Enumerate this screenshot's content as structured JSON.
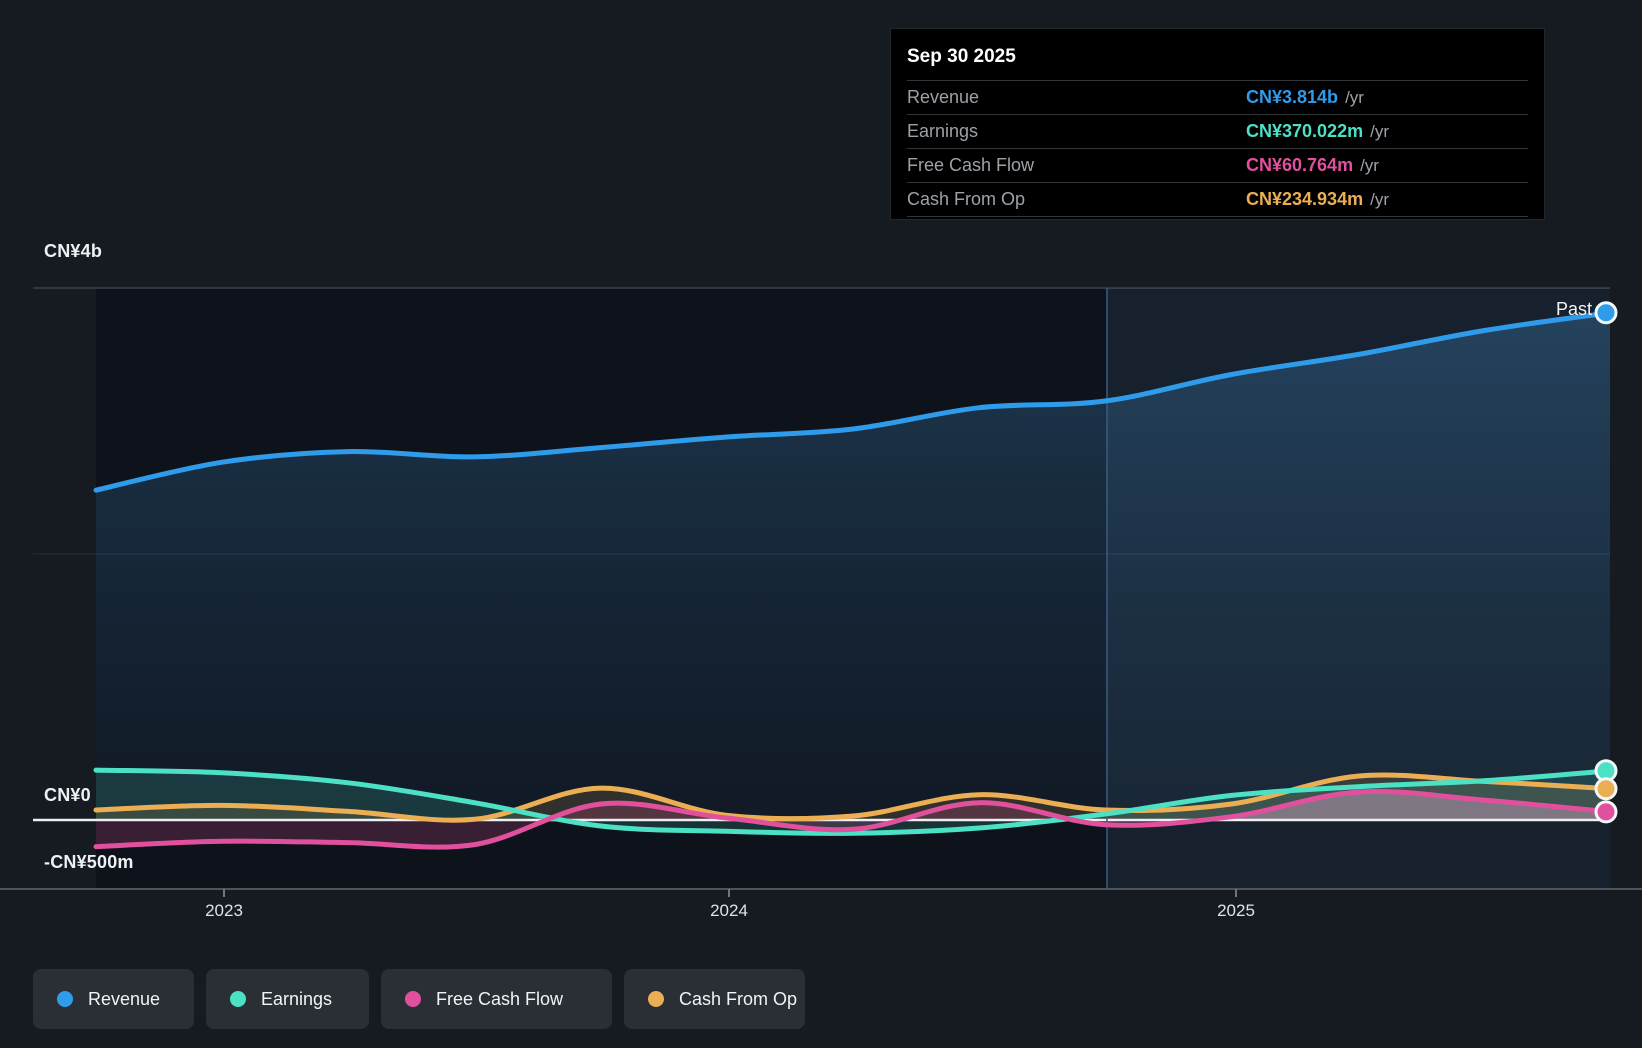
{
  "tooltip": {
    "date": "Sep 30 2025",
    "rows": [
      {
        "label": "Revenue",
        "value": "CN¥3.814b",
        "suffix": "/yr",
        "value_color": "#2f9ceb"
      },
      {
        "label": "Earnings",
        "value": "CN¥370.022m",
        "suffix": "/yr",
        "value_color": "#4ce0c5"
      },
      {
        "label": "Free Cash Flow",
        "value": "CN¥60.764m",
        "suffix": "/yr",
        "value_color": "#e0509d"
      },
      {
        "label": "Cash From Op",
        "value": "CN¥234.934m",
        "suffix": "/yr",
        "value_color": "#ebae52"
      }
    ]
  },
  "axis": {
    "y_labels": [
      "CN¥4b",
      "CN¥0",
      "-CN¥500m"
    ],
    "x_labels": [
      "2023",
      "2024",
      "2025"
    ]
  },
  "past_label": "Past",
  "legend": {
    "items": [
      {
        "label": "Revenue",
        "color": "#2f9ceb"
      },
      {
        "label": "Earnings",
        "color": "#4ce0c5"
      },
      {
        "label": "Free Cash Flow",
        "color": "#e0509d"
      },
      {
        "label": "Cash From Op",
        "color": "#ebae52"
      }
    ]
  },
  "colors": {
    "background": "#161b22",
    "plot_background": "#0e131b",
    "zero_line": "#edeff1",
    "gridline": "#3d434b",
    "divider_line": "#3a5b80",
    "highlight_tint": "#659cd0"
  },
  "chart_data": {
    "type": "area",
    "title": "",
    "xlabel": "",
    "ylabel": "CN¥",
    "x_quarterly_dates": [
      "Sep 30 2022",
      "Dec 31 2022",
      "Mar 31 2023",
      "Jun 30 2023",
      "Sep 30 2023",
      "Dec 31 2023",
      "Mar 31 2024",
      "Jun 30 2024",
      "Sep 30 2024",
      "Dec 31 2024",
      "Mar 31 2025",
      "Jun 30 2025",
      "Sep 30 2025"
    ],
    "x_tick_labels": [
      "2023",
      "2024",
      "2025"
    ],
    "y_tick_labels": [
      "CN¥4b",
      "CN¥0",
      "-CN¥500m"
    ],
    "y_gridlines_cny_m": [
      4000,
      2000,
      0,
      -500
    ],
    "ylim_cny_m": [
      -500,
      4000
    ],
    "divider_date": "Sep 30 2024",
    "hover_date": "Sep 30 2025",
    "legend_position": "bottom",
    "grid": "horizontal",
    "series": [
      {
        "name": "Revenue",
        "color": "#2f9ceb",
        "values_cny_m": [
          2480,
          2690,
          2770,
          2730,
          2800,
          2880,
          2940,
          3100,
          3150,
          3350,
          3500,
          3680,
          3814
        ],
        "end_value": "CN¥3.814b /yr"
      },
      {
        "name": "Earnings",
        "color": "#4ce0c5",
        "values_cny_m": [
          375,
          355,
          280,
          130,
          -45,
          -85,
          -100,
          -60,
          45,
          185,
          250,
          295,
          370
        ],
        "end_value": "CN¥370.022m /yr"
      },
      {
        "name": "Free Cash Flow",
        "color": "#e0509d",
        "values_cny_m": [
          -200,
          -160,
          -170,
          -185,
          120,
          15,
          -70,
          130,
          -35,
          25,
          210,
          150,
          61
        ],
        "end_value": "CN¥60.764m /yr"
      },
      {
        "name": "Cash From Op",
        "color": "#ebae52",
        "values_cny_m": [
          75,
          110,
          65,
          5,
          240,
          35,
          30,
          190,
          75,
          120,
          330,
          290,
          235
        ],
        "end_value": "CN¥234.934m /yr"
      }
    ]
  }
}
